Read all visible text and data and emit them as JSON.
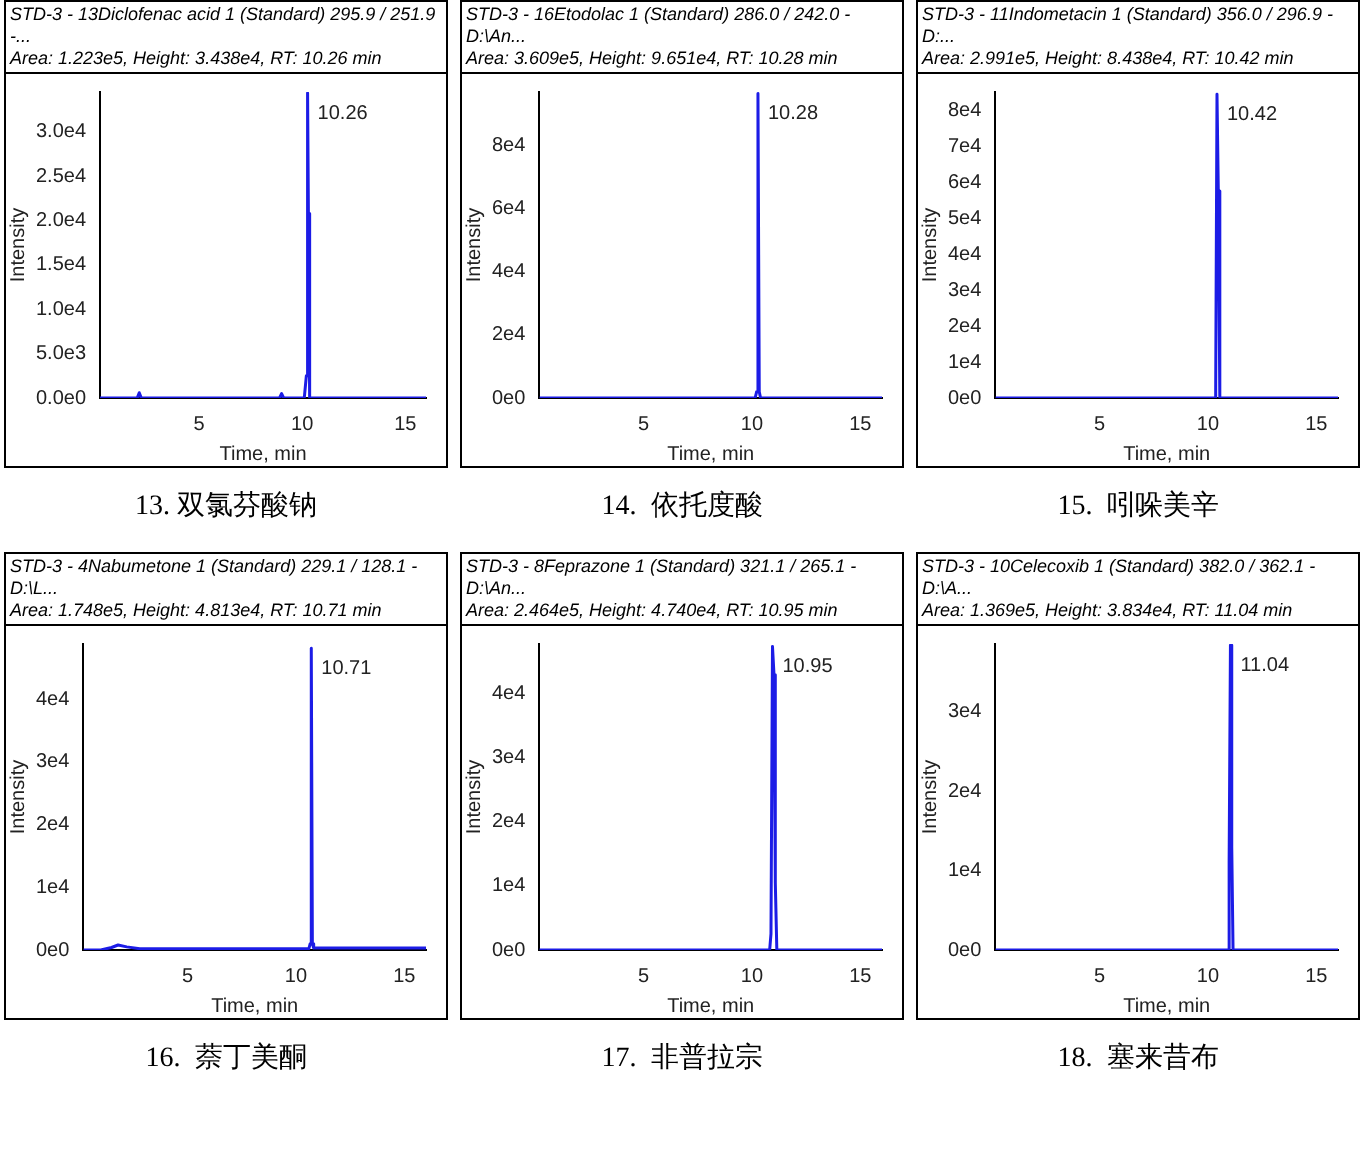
{
  "chart_data": [
    {
      "type": "line",
      "title": "STD-3 - 13Diclofenac acid 1 (Standard) 295.9 / 251.9 -...",
      "subtitle": "Area: 1.223e5, Height: 3.438e4, RT: 10.26 min",
      "xlabel": "Time, min",
      "ylabel": "Intensity",
      "xlim": [
        0.2,
        16
      ],
      "xticks": [
        5,
        10,
        15
      ],
      "ylim": [
        0,
        34500
      ],
      "yticks": [
        {
          "value": 0,
          "label": "0.0e0"
        },
        {
          "value": 5000,
          "label": "5.0e3"
        },
        {
          "value": 10000,
          "label": "1.0e4"
        },
        {
          "value": 15000,
          "label": "1.5e4"
        },
        {
          "value": 20000,
          "label": "2.0e4"
        },
        {
          "value": 25000,
          "label": "2.5e4"
        },
        {
          "value": 30000,
          "label": "3.0e4"
        }
      ],
      "series": [
        {
          "color": "#1c1ce6",
          "x": [
            0.2,
            2.0,
            2.1,
            2.2,
            8.9,
            9.0,
            9.1,
            10.1,
            10.2,
            10.26,
            10.3,
            10.36,
            10.45,
            16
          ],
          "values": [
            0,
            0,
            600,
            0,
            0,
            500,
            0,
            0,
            2500,
            34380,
            20800,
            0,
            0,
            0
          ]
        }
      ],
      "annotations": [
        {
          "text": "10.26",
          "x": 10.26,
          "y": 34380
        },
        "13. 双氯芬酸钠"
      ]
    },
    {
      "type": "line",
      "title": "STD-3 - 16Etodolac 1 (Standard) 286.0 / 242.0 - D:\\An...",
      "subtitle": "Area: 3.609e5, Height: 9.651e4, RT: 10.28 min",
      "xlabel": "Time, min",
      "ylabel": "Intensity",
      "xlim": [
        0.2,
        16
      ],
      "xticks": [
        5,
        10,
        15
      ],
      "ylim": [
        0,
        97000
      ],
      "yticks": [
        {
          "value": 0,
          "label": "0e0"
        },
        {
          "value": 20000,
          "label": "2e4"
        },
        {
          "value": 40000,
          "label": "4e4"
        },
        {
          "value": 60000,
          "label": "6e4"
        },
        {
          "value": 80000,
          "label": "8e4"
        }
      ],
      "series": [
        {
          "color": "#1c1ce6",
          "x": [
            0.2,
            10.15,
            10.22,
            10.28,
            10.34,
            10.4,
            16
          ],
          "values": [
            0,
            0,
            2000,
            96510,
            2000,
            0,
            0
          ]
        }
      ],
      "annotations": [
        {
          "text": "10.28",
          "x": 10.28,
          "y": 96510
        },
        "14.  依托度酸"
      ]
    },
    {
      "type": "line",
      "title": "STD-3 - 11Indometacin 1 (Standard) 356.0 / 296.9 - D:...",
      "subtitle": "Area: 2.991e5, Height: 8.438e4, RT: 10.42 min",
      "xlabel": "Time, min",
      "ylabel": "Intensity",
      "xlim": [
        0.2,
        16
      ],
      "xticks": [
        5,
        10,
        15
      ],
      "ylim": [
        0,
        85000
      ],
      "yticks": [
        {
          "value": 0,
          "label": "0e0"
        },
        {
          "value": 10000,
          "label": "1e4"
        },
        {
          "value": 20000,
          "label": "2e4"
        },
        {
          "value": 30000,
          "label": "3e4"
        },
        {
          "value": 40000,
          "label": "4e4"
        },
        {
          "value": 50000,
          "label": "5e4"
        },
        {
          "value": 60000,
          "label": "6e4"
        },
        {
          "value": 70000,
          "label": "7e4"
        },
        {
          "value": 80000,
          "label": "8e4"
        }
      ],
      "series": [
        {
          "color": "#1c1ce6",
          "x": [
            0.2,
            10.3,
            10.36,
            10.42,
            10.48,
            10.55,
            16
          ],
          "values": [
            0,
            0,
            3000,
            84380,
            57500,
            0,
            0
          ]
        }
      ],
      "annotations": [
        {
          "text": "10.42",
          "x": 10.42,
          "y": 84380
        },
        "15.  吲哚美辛"
      ]
    },
    {
      "type": "line",
      "title": "STD-3 - 4Nabumetone 1 (Standard) 229.1 / 128.1 - D:\\L...",
      "subtitle": "Area: 1.748e5, Height: 4.813e4, RT: 10.71 min",
      "xlabel": "Time, min",
      "ylabel": "Intensity",
      "xlim": [
        0.2,
        16
      ],
      "xticks": [
        5,
        10,
        15
      ],
      "ylim": [
        0,
        48800
      ],
      "yticks": [
        {
          "value": 0,
          "label": "0e0"
        },
        {
          "value": 10000,
          "label": "1e4"
        },
        {
          "value": 20000,
          "label": "2e4"
        },
        {
          "value": 30000,
          "label": "3e4"
        },
        {
          "value": 40000,
          "label": "4e4"
        }
      ],
      "series": [
        {
          "color": "#1c1ce6",
          "x": [
            0.2,
            1.0,
            1.5,
            1.8,
            2.2,
            2.8,
            10.6,
            10.66,
            10.71,
            10.76,
            10.82,
            16
          ],
          "values": [
            0,
            0,
            400,
            800,
            500,
            200,
            200,
            1000,
            48130,
            1000,
            300,
            300
          ]
        }
      ],
      "annotations": [
        {
          "text": "10.71",
          "x": 10.71,
          "y": 48130
        },
        "16.  萘丁美酮"
      ]
    },
    {
      "type": "line",
      "title": "STD-3 - 8Feprazone 1 (Standard) 321.1 / 265.1 - D:\\An...",
      "subtitle": "Area: 2.464e5, Height: 4.740e4, RT: 10.95 min",
      "xlabel": "Time, min",
      "ylabel": "Intensity",
      "xlim": [
        0.2,
        16
      ],
      "xticks": [
        5,
        10,
        15
      ],
      "ylim": [
        0,
        47800
      ],
      "yticks": [
        {
          "value": 0,
          "label": "0e0"
        },
        {
          "value": 10000,
          "label": "1e4"
        },
        {
          "value": 20000,
          "label": "2e4"
        },
        {
          "value": 30000,
          "label": "3e4"
        },
        {
          "value": 40000,
          "label": "4e4"
        }
      ],
      "series": [
        {
          "color": "#1c1ce6",
          "x": [
            0.2,
            10.82,
            10.88,
            10.95,
            11.02,
            11.08,
            11.15,
            16
          ],
          "values": [
            0,
            0,
            2500,
            47400,
            43000,
            10500,
            0,
            0
          ]
        }
      ],
      "annotations": [
        {
          "text": "10.95",
          "x": 10.95,
          "y": 47400
        },
        "17.  非普拉宗"
      ]
    },
    {
      "type": "line",
      "title": "STD-3 - 10Celecoxib 1 (Standard) 382.0 / 362.1 - D:\\A...",
      "subtitle": "Area: 1.369e5, Height: 3.834e4, RT: 11.04 min",
      "xlabel": "Time, min",
      "ylabel": "Intensity",
      "xlim": [
        0.2,
        16
      ],
      "xticks": [
        5,
        10,
        15
      ],
      "ylim": [
        0,
        38500
      ],
      "yticks": [
        {
          "value": 0,
          "label": "0e0"
        },
        {
          "value": 10000,
          "label": "1e4"
        },
        {
          "value": 20000,
          "label": "2e4"
        },
        {
          "value": 30000,
          "label": "3e4"
        }
      ],
      "series": [
        {
          "color": "#1c1ce6",
          "x": [
            0.2,
            10.95,
            10.98,
            11.04,
            11.1,
            11.16,
            16
          ],
          "values": [
            0,
            0,
            11000,
            38340,
            13000,
            0,
            0
          ]
        }
      ],
      "annotations": [
        {
          "text": "11.04",
          "x": 11.04,
          "y": 38340
        },
        "18.  塞来昔布"
      ]
    }
  ]
}
